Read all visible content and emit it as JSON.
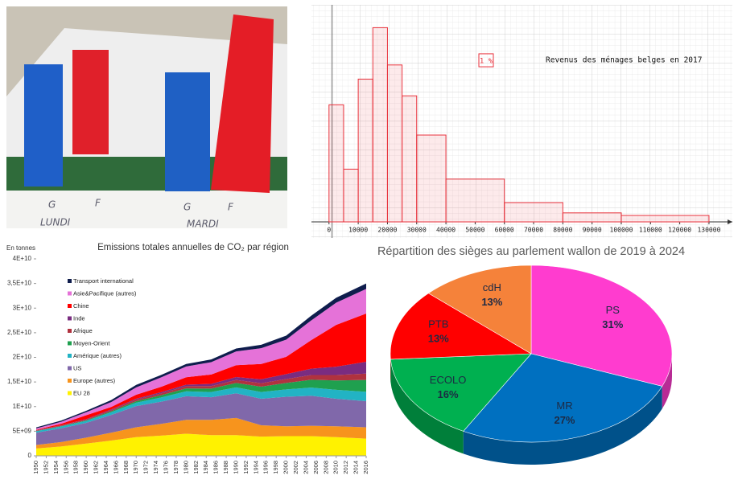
{
  "photo": {
    "bar_labels": [
      "G",
      "F",
      "G",
      "F"
    ],
    "day_labels": [
      "LUNDI",
      "MARDI"
    ]
  },
  "chart_data": [
    {
      "type": "histogram",
      "title": "Revenus des ménages belges en 2017",
      "bins": [
        0,
        5000,
        10000,
        15000,
        20000,
        25000,
        30000,
        40000,
        60000,
        80000,
        100000,
        130000
      ],
      "values": [
        9.1,
        4.1,
        11.1,
        15.1,
        12.2,
        9.8,
        13.5,
        13.3,
        6.0,
        2.8,
        3.0
      ],
      "area_key": {
        "value": 1,
        "label": "1 %"
      },
      "color": "#e8323c",
      "xlim": [
        -6000,
        138000
      ],
      "xticks": [
        0,
        10000,
        20000,
        30000,
        40000,
        50000,
        60000,
        70000,
        80000,
        90000,
        100000,
        110000,
        120000,
        130000
      ],
      "grid": true
    },
    {
      "type": "stacked_area",
      "title": "Emissions totales annuelles de CO₂ par région",
      "ylabel": "En tonnes",
      "x": [
        1950,
        1955,
        1960,
        1965,
        1970,
        1975,
        1980,
        1985,
        1990,
        1995,
        2000,
        2005,
        2010,
        2016
      ],
      "series": [
        {
          "name": "EU 28",
          "color": "#fff200",
          "values": [
            1500000000.0,
            1900000000.0,
            2500000000.0,
            3100000000.0,
            3800000000.0,
            4100000000.0,
            4500000000.0,
            4200000000.0,
            4200000000.0,
            3900000000.0,
            4000000000.0,
            4000000000.0,
            3800000000.0,
            3500000000.0
          ]
        },
        {
          "name": "Europe (autres)",
          "color": "#f7941d",
          "values": [
            700000000.0,
            900000000.0,
            1200000000.0,
            1600000000.0,
            2000000000.0,
            2400000000.0,
            2800000000.0,
            3100000000.0,
            3500000000.0,
            2300000000.0,
            2000000000.0,
            2100000000.0,
            2200000000.0,
            2300000000.0
          ]
        },
        {
          "name": "US",
          "color": "#8068aa",
          "values": [
            2500000000.0,
            2800000000.0,
            3000000000.0,
            3600000000.0,
            4300000000.0,
            4500000000.0,
            4800000000.0,
            4600000000.0,
            5000000000.0,
            5400000000.0,
            6000000000.0,
            6100000000.0,
            5600000000.0,
            5300000000.0
          ]
        },
        {
          "name": "Amérique (autres)",
          "color": "#22b3c4",
          "values": [
            300000000.0,
            350000000.0,
            400000000.0,
            550000000.0,
            700000000.0,
            850000000.0,
            1000000000.0,
            1050000000.0,
            1200000000.0,
            1350000000.0,
            1500000000.0,
            1650000000.0,
            1800000000.0,
            1900000000.0
          ]
        },
        {
          "name": "Moyen-Orient",
          "color": "#1fa04f",
          "values": [
            50000000.0,
            70000000.0,
            100000000.0,
            200000000.0,
            300000000.0,
            450000000.0,
            600000000.0,
            700000000.0,
            900000000.0,
            1100000000.0,
            1300000000.0,
            1600000000.0,
            1900000000.0,
            2400000000.0
          ]
        },
        {
          "name": "Afrique",
          "color": "#b0323f",
          "values": [
            100000000.0,
            120000000.0,
            150000000.0,
            220000000.0,
            300000000.0,
            380000000.0,
            450000000.0,
            520000000.0,
            600000000.0,
            700000000.0,
            800000000.0,
            950000000.0,
            1100000000.0,
            1300000000.0
          ]
        },
        {
          "name": "Inde",
          "color": "#7a2c80",
          "values": [
            50000000.0,
            70000000.0,
            100000000.0,
            150000000.0,
            200000000.0,
            250000000.0,
            300000000.0,
            450000000.0,
            600000000.0,
            800000000.0,
            1000000000.0,
            1300000000.0,
            1700000000.0,
            2400000000.0
          ]
        },
        {
          "name": "Chine",
          "color": "#ff0000",
          "values": [
            80000000.0,
            300000000.0,
            800000000.0,
            500000000.0,
            800000000.0,
            1100000000.0,
            1500000000.0,
            1900000000.0,
            2400000000.0,
            3100000000.0,
            3500000000.0,
            5800000000.0,
            8500000000.0,
            9800000000.0
          ]
        },
        {
          "name": "Asie&Pacifique (autres)",
          "color": "#e572d8",
          "values": [
            300000000.0,
            400000000.0,
            600000000.0,
            1000000000.0,
            1500000000.0,
            1900000000.0,
            2200000000.0,
            2500000000.0,
            2800000000.0,
            3200000000.0,
            3500000000.0,
            4000000000.0,
            4500000000.0,
            5000000000.0
          ]
        },
        {
          "name": "Transport international",
          "color": "#0f1d4d",
          "values": [
            200000000.0,
            250000000.0,
            300000000.0,
            400000000.0,
            500000000.0,
            500000000.0,
            500000000.0,
            550000000.0,
            600000000.0,
            700000000.0,
            800000000.0,
            950000000.0,
            1000000000.0,
            1100000000.0
          ]
        }
      ],
      "xlim": [
        1950,
        2016
      ],
      "xticks": [
        1950,
        1952,
        1954,
        1956,
        1958,
        1960,
        1962,
        1964,
        1966,
        1968,
        1970,
        1972,
        1974,
        1976,
        1978,
        1980,
        1982,
        1984,
        1986,
        1988,
        1990,
        1992,
        1994,
        1996,
        1998,
        2000,
        2002,
        2004,
        2006,
        2008,
        2010,
        2012,
        2014,
        2016
      ],
      "ylim": [
        0,
        40000000000.0
      ],
      "yticks": [
        0,
        {
          "value": 5000000000.0,
          "label": "5E+09"
        },
        {
          "value": 10000000000.0,
          "label": "1E+10"
        },
        {
          "value": 15000000000.0,
          "label": "1,5E+10"
        },
        {
          "value": 20000000000.0,
          "label": "2E+10"
        },
        {
          "value": 25000000000.0,
          "label": "2,5E+10"
        },
        {
          "value": 30000000000.0,
          "label": "3E+10"
        },
        {
          "value": 35000000000.0,
          "label": "3,5E+10"
        },
        {
          "value": 40000000000.0,
          "label": "4E+10"
        }
      ]
    },
    {
      "type": "pie3d",
      "title": "Répartition des sièges au parlement wallon de 2019 à 2024",
      "categories": [
        "PS",
        "MR",
        "ECOLO",
        "PTB",
        "cdH"
      ],
      "values": [
        31,
        27,
        16,
        13,
        13
      ],
      "value_labels": [
        "31%",
        "27%",
        "16%",
        "13%",
        "13%"
      ],
      "colors": [
        "#ff3ccf",
        "#0070c0",
        "#00b050",
        "#ff0000",
        "#f5823a"
      ]
    }
  ]
}
